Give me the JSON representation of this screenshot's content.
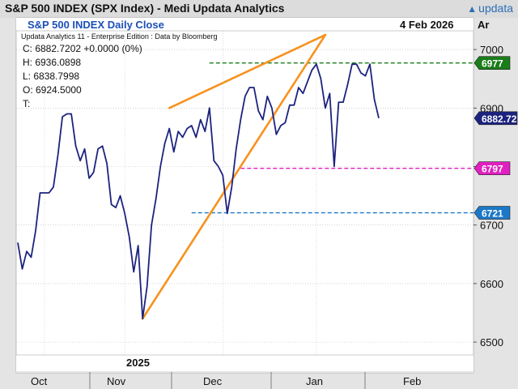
{
  "window": {
    "title": "S&P 500 INDEX (SPX Index) - Medi  Updata Analytics",
    "logo_text": "updata",
    "logo_icon": "up-arrow-icon",
    "corner_label": "Ar"
  },
  "panel": {
    "name": "S&P 500 INDEX Daily Close",
    "date": "4 Feb 2026",
    "edition": "Updata Analytics 11 - Enterprise Edition : Data by Bloomberg",
    "ohlc": [
      "C: 6882.7202  +0.0000 (0%)",
      "H: 6936.0898",
      "L: 6838.7998",
      "O: 6924.5000",
      "T:"
    ]
  },
  "colors": {
    "background": "#ffffff",
    "price_line": "#1c237e",
    "trendline": "#f7921e",
    "resistance": "#1a7d1a",
    "support_high": "#e020c0",
    "support_low": "#1b78c8",
    "last_price": "#1c237e"
  },
  "chart_data": {
    "type": "line",
    "title": "S&P 500 INDEX Daily Close",
    "series": [
      {
        "name": "SPX Daily Close",
        "values": [
          6670,
          6625,
          6655,
          6645,
          6690,
          6755,
          6755,
          6755,
          6765,
          6820,
          6885,
          6890,
          6890,
          6835,
          6810,
          6830,
          6780,
          6790,
          6830,
          6835,
          6805,
          6735,
          6730,
          6750,
          6720,
          6680,
          6620,
          6665,
          6540,
          6595,
          6700,
          6745,
          6800,
          6840,
          6865,
          6825,
          6860,
          6850,
          6865,
          6870,
          6850,
          6880,
          6860,
          6900,
          6810,
          6800,
          6785,
          6720,
          6765,
          6830,
          6880,
          6920,
          6935,
          6935,
          6895,
          6880,
          6920,
          6900,
          6855,
          6870,
          6875,
          6905,
          6905,
          6935,
          6925,
          6945,
          6965,
          6975,
          6950,
          6900,
          6925,
          6800,
          6910,
          6910,
          6940,
          6975,
          6975,
          6960,
          6955,
          6975,
          6915,
          6882.72
        ]
      }
    ],
    "x_axis": {
      "year_label": "2025",
      "month_labels": [
        "Oct",
        "Nov",
        "Dec",
        "Jan",
        "Feb"
      ]
    },
    "y_axis": {
      "ylim": [
        6478,
        7032
      ],
      "ticks": [
        6500,
        6600,
        6700,
        6800,
        6900,
        7000
      ],
      "side": "right",
      "grid": true
    },
    "levels": [
      {
        "label": "6977",
        "value": 6977,
        "style": "dashed",
        "color": "#1a7d1a",
        "start_index": 43
      },
      {
        "label": "6797",
        "value": 6797,
        "style": "dashed",
        "color": "#e020c0",
        "start_index": 50
      },
      {
        "label": "6721",
        "value": 6721,
        "style": "dashed",
        "color": "#1b78c8",
        "start_index": 39
      }
    ],
    "last_price": {
      "label": "6882.72",
      "value": 6882.72
    },
    "trendlines": [
      {
        "from": {
          "index": 28,
          "value": 6540
        },
        "to": {
          "index": 69,
          "value": 7025
        }
      },
      {
        "from": {
          "index": 34,
          "value": 6900
        },
        "to": {
          "index": 69,
          "value": 7025
        }
      }
    ]
  }
}
